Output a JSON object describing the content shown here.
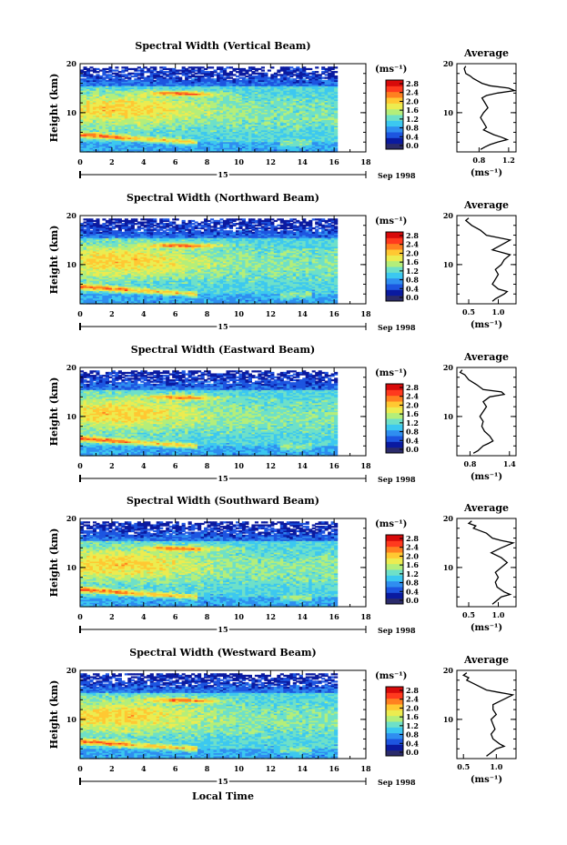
{
  "chart_data": {
    "type": "heatmap",
    "colorbar": {
      "unit": "(ms⁻¹)",
      "ticks": [
        "2.8",
        "2.4",
        "2.0",
        "1.6",
        "1.2",
        "0.8",
        "0.4",
        "0.0"
      ],
      "range": [
        0.0,
        3.0
      ],
      "colors": [
        "#2b2b6b",
        "#0a1aa0",
        "#1d55e0",
        "#2f8ef0",
        "#3cc8f0",
        "#6ee0c8",
        "#b4ee7a",
        "#ecec50",
        "#ffc832",
        "#ff8020",
        "#ff3a1e",
        "#d80a0a"
      ]
    },
    "x_axis": {
      "label": "Local Time",
      "range": [
        0,
        18
      ],
      "ticks": [
        "0",
        "2",
        "4",
        "6",
        "8",
        "10",
        "12",
        "14",
        "16",
        "18"
      ],
      "day_label": "15",
      "date_label": "Sep 1998"
    },
    "y_axis": {
      "label": "Height (km)",
      "range": [
        2,
        20
      ],
      "ticks": [
        "20",
        "10"
      ]
    },
    "panels": [
      {
        "title": "Spectral Width (Vertical Beam)",
        "data_end_hour": 16,
        "average": {
          "title": "Average",
          "unit": "(ms⁻¹)",
          "xlim": [
            0.5,
            1.3
          ],
          "xticks": [
            "0.8",
            "1.2"
          ],
          "profile": [
            [
              0.62,
              19.5
            ],
            [
              0.6,
              19
            ],
            [
              0.62,
              18
            ],
            [
              0.68,
              17.5
            ],
            [
              0.72,
              17
            ],
            [
              0.78,
              16.5
            ],
            [
              0.84,
              16
            ],
            [
              0.95,
              15.5
            ],
            [
              1.2,
              15
            ],
            [
              1.28,
              14.5
            ],
            [
              1.05,
              14
            ],
            [
              0.9,
              13.5
            ],
            [
              0.84,
              13
            ],
            [
              0.88,
              12
            ],
            [
              0.92,
              11
            ],
            [
              0.86,
              10
            ],
            [
              0.82,
              9
            ],
            [
              0.86,
              8
            ],
            [
              0.9,
              7
            ],
            [
              0.86,
              6.5
            ],
            [
              1.0,
              5.5
            ],
            [
              1.1,
              5
            ],
            [
              1.18,
              4.5
            ],
            [
              1.05,
              4
            ],
            [
              0.95,
              3.5
            ],
            [
              0.88,
              3
            ],
            [
              0.82,
              2.5
            ]
          ]
        }
      },
      {
        "title": "Spectral Width (Northward Beam)",
        "data_end_hour": 16,
        "average": {
          "title": "Average",
          "unit": "(ms⁻¹)",
          "xlim": [
            0.3,
            1.3
          ],
          "xticks": [
            "0.5",
            "1.0"
          ],
          "profile": [
            [
              0.5,
              19.5
            ],
            [
              0.45,
              19
            ],
            [
              0.55,
              18
            ],
            [
              0.7,
              17
            ],
            [
              0.8,
              16
            ],
            [
              1.0,
              15.5
            ],
            [
              1.2,
              15
            ],
            [
              1.05,
              14
            ],
            [
              0.9,
              13
            ],
            [
              1.05,
              12.5
            ],
            [
              1.2,
              12
            ],
            [
              1.1,
              11
            ],
            [
              1.05,
              10
            ],
            [
              0.95,
              9
            ],
            [
              1.0,
              8
            ],
            [
              0.95,
              7
            ],
            [
              0.9,
              6
            ],
            [
              1.0,
              5
            ],
            [
              1.15,
              4.5
            ],
            [
              1.1,
              4
            ],
            [
              0.95,
              3
            ],
            [
              0.9,
              2.5
            ]
          ]
        }
      },
      {
        "title": "Spectral Width (Eastward Beam)",
        "data_end_hour": 16,
        "average": {
          "title": "Average",
          "unit": "(ms⁻¹)",
          "xlim": [
            0.6,
            1.5
          ],
          "xticks": [
            "0.8",
            "1.4"
          ],
          "profile": [
            [
              0.68,
              19.5
            ],
            [
              0.65,
              19
            ],
            [
              0.72,
              18.5
            ],
            [
              0.78,
              17.5
            ],
            [
              0.9,
              16.5
            ],
            [
              1.0,
              15.5
            ],
            [
              1.28,
              15
            ],
            [
              1.32,
              14.5
            ],
            [
              1.1,
              14
            ],
            [
              1.0,
              13
            ],
            [
              1.05,
              12
            ],
            [
              1.0,
              11
            ],
            [
              0.95,
              10
            ],
            [
              1.0,
              9
            ],
            [
              0.98,
              8
            ],
            [
              1.02,
              7
            ],
            [
              1.1,
              6
            ],
            [
              1.15,
              5
            ],
            [
              1.08,
              4.5
            ],
            [
              1.0,
              4
            ],
            [
              0.92,
              3
            ],
            [
              0.85,
              2.5
            ]
          ]
        }
      },
      {
        "title": "Spectral Width (Southward Beam)",
        "data_end_hour": 16,
        "average": {
          "title": "Average",
          "unit": "(ms⁻¹)",
          "xlim": [
            0.3,
            1.3
          ],
          "xticks": [
            "0.5",
            "1.0"
          ],
          "profile": [
            [
              0.55,
              19.5
            ],
            [
              0.5,
              19
            ],
            [
              0.62,
              18.5
            ],
            [
              0.58,
              18
            ],
            [
              0.8,
              17
            ],
            [
              0.9,
              16
            ],
            [
              1.05,
              15.5
            ],
            [
              1.25,
              15
            ],
            [
              1.05,
              14
            ],
            [
              0.88,
              13
            ],
            [
              1.05,
              12
            ],
            [
              1.15,
              11
            ],
            [
              1.05,
              10
            ],
            [
              0.95,
              9
            ],
            [
              1.0,
              8
            ],
            [
              0.95,
              7
            ],
            [
              0.98,
              6
            ],
            [
              1.1,
              5
            ],
            [
              1.2,
              4.5
            ],
            [
              1.05,
              4
            ],
            [
              0.95,
              3
            ],
            [
              0.9,
              2.5
            ]
          ]
        }
      },
      {
        "title": "Spectral Width (Westward Beam)",
        "data_end_hour": 16,
        "average": {
          "title": "Average",
          "unit": "(ms⁻¹)",
          "xlim": [
            0.4,
            1.3
          ],
          "xticks": [
            "0.5",
            "1.0"
          ],
          "profile": [
            [
              0.55,
              19.5
            ],
            [
              0.5,
              19
            ],
            [
              0.58,
              18.5
            ],
            [
              0.55,
              18
            ],
            [
              0.7,
              17
            ],
            [
              0.85,
              16
            ],
            [
              1.05,
              15.5
            ],
            [
              1.25,
              15
            ],
            [
              1.1,
              14
            ],
            [
              0.95,
              13
            ],
            [
              0.95,
              12
            ],
            [
              1.0,
              11
            ],
            [
              0.92,
              10
            ],
            [
              0.95,
              9
            ],
            [
              0.98,
              8
            ],
            [
              0.92,
              7
            ],
            [
              0.95,
              6
            ],
            [
              1.05,
              5
            ],
            [
              1.12,
              4.5
            ],
            [
              1.0,
              4
            ],
            [
              0.9,
              3
            ],
            [
              0.85,
              2.5
            ]
          ]
        }
      }
    ]
  }
}
